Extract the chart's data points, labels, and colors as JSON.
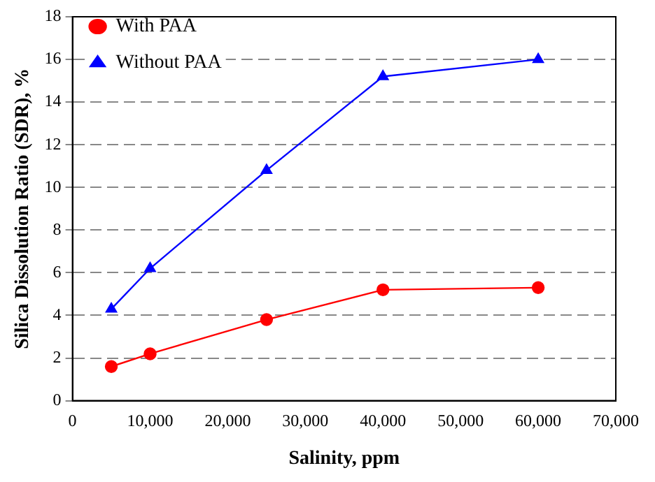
{
  "chart_data": {
    "type": "line",
    "xlabel": "Salinity, ppm",
    "ylabel": "Silica Dissolution Ratio (SDR), %",
    "xlim": [
      0,
      70000
    ],
    "xticks": [
      0,
      {
        "value": 10000,
        "label": "10,000"
      },
      {
        "value": 20000,
        "label": "20,000"
      },
      {
        "value": 30000,
        "label": "30,000"
      },
      {
        "value": 40000,
        "label": "40,000"
      },
      {
        "value": 50000,
        "label": "50,000"
      },
      {
        "value": 60000,
        "label": "60,000"
      },
      {
        "value": 70000,
        "label": "70,000"
      }
    ],
    "ylim": [
      0,
      18
    ],
    "yticks": [
      0,
      2,
      4,
      6,
      8,
      10,
      12,
      14,
      16,
      18
    ],
    "grid": "y",
    "legend": "top left",
    "line_style": "solid",
    "x": [
      5000,
      10000,
      25000,
      40000,
      60000
    ],
    "series": [
      {
        "name": "With PAA",
        "color": "#ff0000",
        "marker": "circle",
        "values": [
          1.6,
          2.2,
          3.8,
          5.2,
          5.3
        ]
      },
      {
        "name": "Without PAA",
        "color": "#0000ff",
        "marker": "triangle",
        "values": [
          4.3,
          6.2,
          10.8,
          15.2,
          16.0
        ]
      }
    ]
  }
}
